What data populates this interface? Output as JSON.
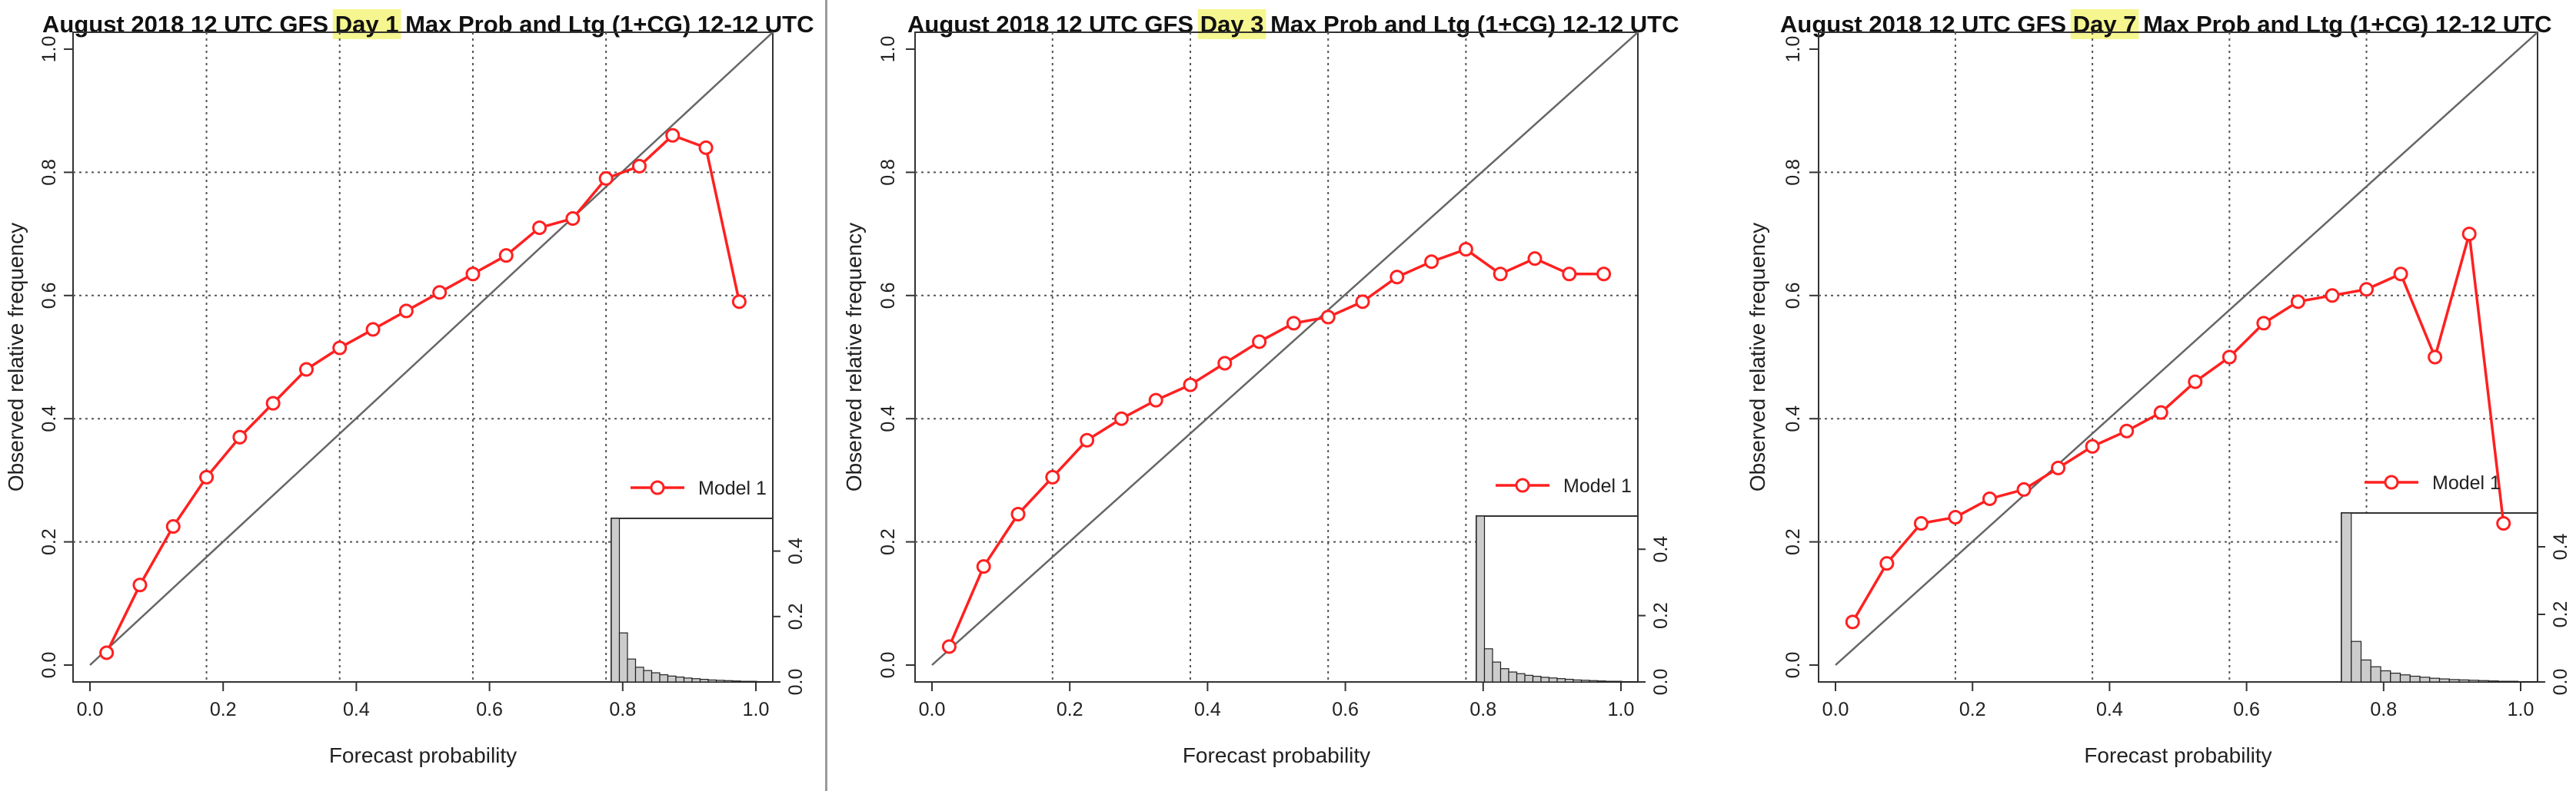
{
  "colors": {
    "series": "#ff2020",
    "diagonal": "#666666",
    "grid": "#555555",
    "title_highlight": "#f6f690",
    "histogram_fill": "#cccccc"
  },
  "chart_data": [
    {
      "type": "line",
      "title": {
        "pre": "August 2018 12 UTC GFS ",
        "highlight": "Day 1",
        "post": " Max Prob and Ltg (1+CG) 12-12 UTC"
      },
      "xlabel": "Forecast probability",
      "ylabel": "Observed relative frequency",
      "xlim": [
        0,
        1
      ],
      "ylim": [
        0,
        1
      ],
      "xticks": [
        "0.0",
        "0.2",
        "0.4",
        "0.6",
        "0.8",
        "1.0"
      ],
      "yticks": [
        "0.0",
        "0.2",
        "0.4",
        "0.6",
        "0.8",
        "1.0"
      ],
      "grid": true,
      "diagonal": "perfect reliability (1:1)",
      "legend_position": "right",
      "series": [
        {
          "name": "Model 1",
          "x": [
            0.025,
            0.075,
            0.125,
            0.175,
            0.225,
            0.275,
            0.325,
            0.375,
            0.425,
            0.475,
            0.525,
            0.575,
            0.625,
            0.675,
            0.725,
            0.775,
            0.825,
            0.875,
            0.925,
            0.975
          ],
          "y": [
            0.02,
            0.13,
            0.225,
            0.305,
            0.37,
            0.425,
            0.48,
            0.515,
            0.545,
            0.575,
            0.605,
            0.635,
            0.665,
            0.71,
            0.725,
            0.79,
            0.81,
            0.86,
            0.84,
            0.59
          ]
        }
      ],
      "inset_histogram": {
        "yticks": [
          "0.0",
          "0.2",
          "0.4"
        ],
        "ylim": [
          0,
          0.5
        ],
        "values": [
          0.5,
          0.15,
          0.07,
          0.045,
          0.035,
          0.028,
          0.022,
          0.018,
          0.015,
          0.012,
          0.01,
          0.008,
          0.006,
          0.005,
          0.004,
          0.003,
          0.002,
          0.002,
          0.001,
          0.001
        ]
      }
    },
    {
      "type": "line",
      "title": {
        "pre": "August 2018 12 UTC GFS ",
        "highlight": "Day 3",
        "post": " Max Prob and Ltg (1+CG) 12-12 UTC"
      },
      "xlabel": "Forecast probability",
      "ylabel": "Observed relative frequency",
      "xlim": [
        0,
        1
      ],
      "ylim": [
        0,
        1
      ],
      "xticks": [
        "0.0",
        "0.2",
        "0.4",
        "0.6",
        "0.8",
        "1.0"
      ],
      "yticks": [
        "0.0",
        "0.2",
        "0.4",
        "0.6",
        "0.8",
        "1.0"
      ],
      "grid": true,
      "diagonal": "perfect reliability (1:1)",
      "legend_position": "right",
      "series": [
        {
          "name": "Model 1",
          "x": [
            0.025,
            0.075,
            0.125,
            0.175,
            0.225,
            0.275,
            0.325,
            0.375,
            0.425,
            0.475,
            0.525,
            0.575,
            0.625,
            0.675,
            0.725,
            0.775,
            0.825,
            0.875,
            0.925,
            0.975
          ],
          "y": [
            0.03,
            0.16,
            0.245,
            0.305,
            0.365,
            0.4,
            0.43,
            0.455,
            0.49,
            0.525,
            0.555,
            0.565,
            0.59,
            0.63,
            0.655,
            0.675,
            0.635,
            0.66,
            0.635,
            0.635
          ]
        }
      ],
      "inset_histogram": {
        "yticks": [
          "0.0",
          "0.2",
          "0.4"
        ],
        "ylim": [
          0,
          0.5
        ],
        "values": [
          0.5,
          0.1,
          0.06,
          0.04,
          0.03,
          0.025,
          0.02,
          0.017,
          0.014,
          0.012,
          0.01,
          0.008,
          0.006,
          0.005,
          0.004,
          0.003,
          0.002,
          0.002,
          0.001,
          0.001
        ]
      }
    },
    {
      "type": "line",
      "title": {
        "pre": "August 2018 12 UTC GFS ",
        "highlight": "Day 7",
        "post": " Max Prob and Ltg (1+CG) 12-12 UTC"
      },
      "xlabel": "Forecast probability",
      "ylabel": "Observed relative frequency",
      "xlim": [
        0,
        1
      ],
      "ylim": [
        0,
        1
      ],
      "xticks": [
        "0.0",
        "0.2",
        "0.4",
        "0.6",
        "0.8",
        "1.0"
      ],
      "yticks": [
        "0.0",
        "0.2",
        "0.4",
        "0.6",
        "0.8",
        "1.0"
      ],
      "grid": true,
      "diagonal": "perfect reliability (1:1)",
      "legend_position": "right",
      "series": [
        {
          "name": "Model 1",
          "x": [
            0.025,
            0.075,
            0.125,
            0.175,
            0.225,
            0.275,
            0.325,
            0.375,
            0.425,
            0.475,
            0.525,
            0.575,
            0.625,
            0.675,
            0.725,
            0.775,
            0.825,
            0.875,
            0.925,
            0.975
          ],
          "y": [
            0.07,
            0.165,
            0.23,
            0.24,
            0.27,
            0.285,
            0.32,
            0.355,
            0.38,
            0.41,
            0.46,
            0.5,
            0.555,
            0.59,
            0.6,
            0.61,
            0.635,
            0.5,
            0.7,
            0.23
          ]
        }
      ],
      "inset_histogram": {
        "yticks": [
          "0.0",
          "0.2",
          "0.4"
        ],
        "ylim": [
          0,
          0.5
        ],
        "values": [
          0.5,
          0.12,
          0.065,
          0.045,
          0.033,
          0.026,
          0.021,
          0.017,
          0.014,
          0.011,
          0.009,
          0.007,
          0.006,
          0.005,
          0.004,
          0.003,
          0.002,
          0.002,
          0.001,
          0.001
        ]
      }
    }
  ]
}
